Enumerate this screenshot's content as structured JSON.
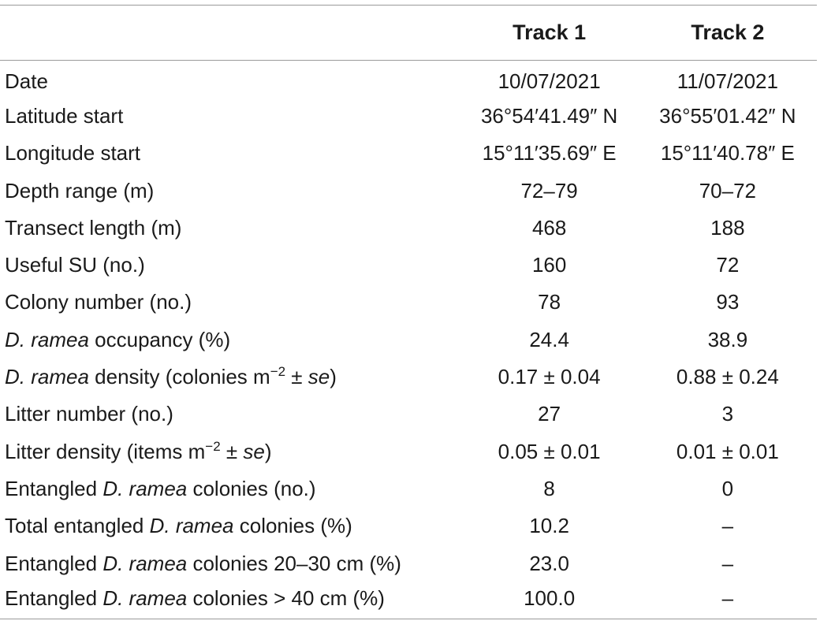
{
  "headers": {
    "param": "",
    "track1": "Track 1",
    "track2": "Track 2"
  },
  "rows": [
    {
      "label": [
        "Date"
      ],
      "t1": "10/07/2021",
      "t2": "11/07/2021"
    },
    {
      "label": [
        "Latitude start"
      ],
      "t1": "36°54′41.49″ N",
      "t2": "36°55′01.42″ N"
    },
    {
      "label": [
        "Longitude start"
      ],
      "t1": "15°11′35.69″ E",
      "t2": "15°11′40.78″ E"
    },
    {
      "label": [
        "Depth range (m)"
      ],
      "t1": "72–79",
      "t2": "70–72"
    },
    {
      "label": [
        "Transect length (m)"
      ],
      "t1": "468",
      "t2": "188"
    },
    {
      "label": [
        "Useful SU (no.)"
      ],
      "t1": "160",
      "t2": "72"
    },
    {
      "label": [
        "Colony number (no.)"
      ],
      "t1": "78",
      "t2": "93"
    },
    {
      "label": [
        "D. ramea",
        " occupancy (%)"
      ],
      "t1": "24.4",
      "t2": "38.9"
    },
    {
      "label": [
        "D. ramea",
        " density (colonies m",
        "−2",
        " ± ",
        "se",
        ")"
      ],
      "t1": "0.17 ± 0.04",
      "t2": "0.88 ± 0.24"
    },
    {
      "label": [
        "Litter number (no.)"
      ],
      "t1": "27",
      "t2": "3"
    },
    {
      "label": [
        "Litter density (items m",
        "−2",
        " ± ",
        "se",
        ")"
      ],
      "t1": "0.05 ± 0.01",
      "t2": "0.01 ± 0.01"
    },
    {
      "label": [
        "Entangled ",
        "D. ramea",
        " colonies (no.)"
      ],
      "t1": "8",
      "t2": "0"
    },
    {
      "label": [
        "Total entangled ",
        "D. ramea",
        " colonies (%)"
      ],
      "t1": "10.2",
      "t2": "–"
    },
    {
      "label": [
        "Entangled ",
        "D. ramea",
        " colonies 20–30 cm (%)"
      ],
      "t1": "23.0",
      "t2": "–"
    },
    {
      "label": [
        "Entangled ",
        "D. ramea",
        " colonies > 40 cm (%)"
      ],
      "t1": "100.0",
      "t2": "–"
    }
  ]
}
